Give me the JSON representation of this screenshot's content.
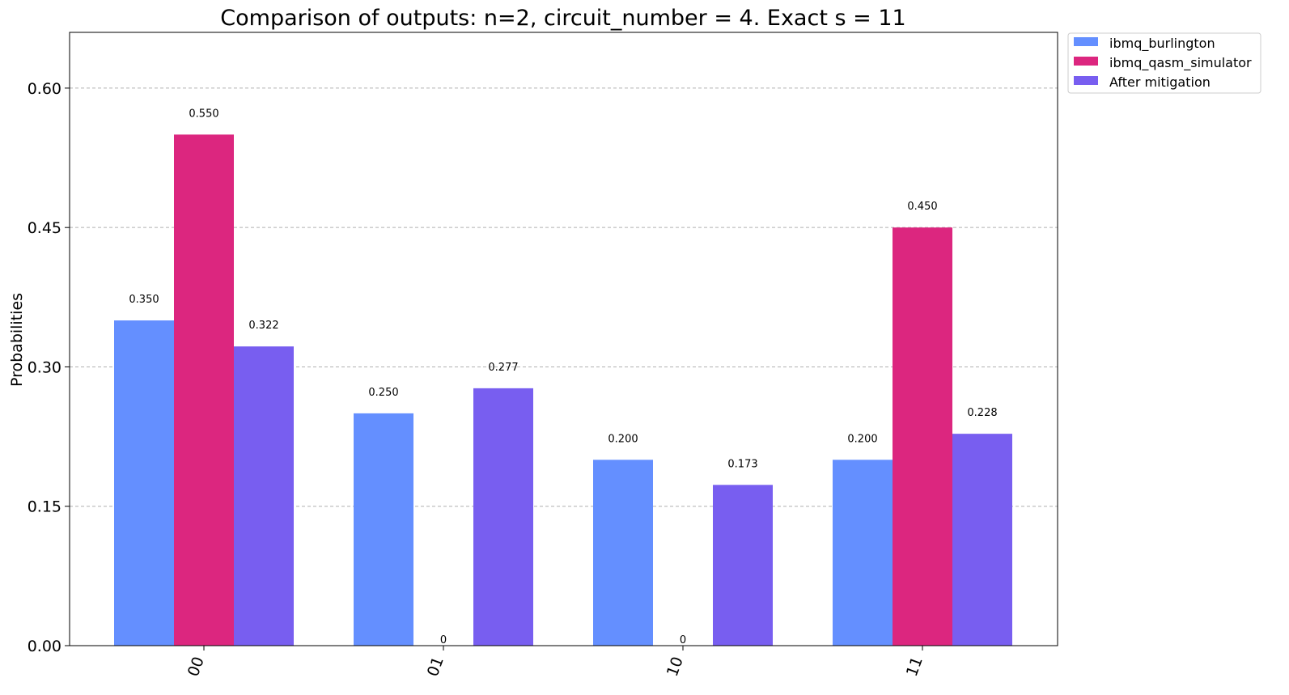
{
  "chart_data": {
    "type": "bar",
    "title": "Comparison of outputs: n=2, circuit_number = 4. Exact s = 11",
    "xlabel": "",
    "ylabel": "Probabilities",
    "categories": [
      "00",
      "01",
      "10",
      "11"
    ],
    "ylim": [
      0,
      0.66
    ],
    "yticks": [
      0.0,
      0.15,
      0.3,
      0.45,
      0.6
    ],
    "ytick_labels": [
      "0.00",
      "0.15",
      "0.30",
      "0.45",
      "0.60"
    ],
    "grid": true,
    "legend_position": "outside-top-right",
    "series": [
      {
        "name": "ibmq_burlington",
        "color": "#648fff",
        "values": [
          0.35,
          0.25,
          0.2,
          0.2
        ],
        "labels": [
          "0.350",
          "0.250",
          "0.200",
          "0.200"
        ]
      },
      {
        "name": "ibmq_qasm_simulator",
        "color": "#dc267f",
        "values": [
          0.55,
          0,
          0,
          0.45
        ],
        "labels": [
          "0.550",
          "0",
          "0",
          "0.450"
        ]
      },
      {
        "name": "After mitigation",
        "color": "#785ef0",
        "values": [
          0.322,
          0.277,
          0.173,
          0.228
        ],
        "labels": [
          "0.322",
          "0.277",
          "0.173",
          "0.228"
        ]
      }
    ]
  }
}
